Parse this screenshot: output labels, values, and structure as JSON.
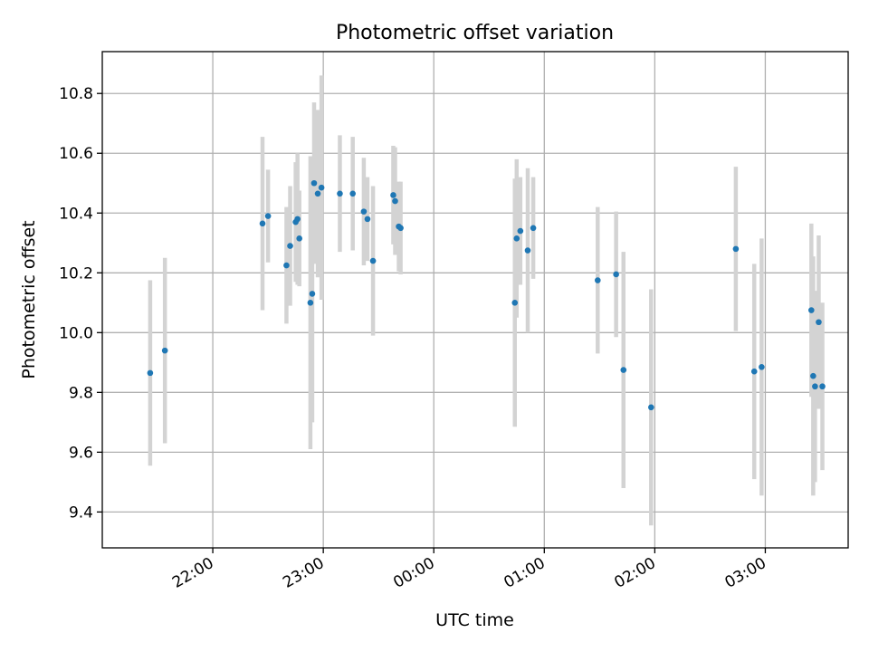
{
  "chart_data": {
    "type": "scatter",
    "title": "Photometric offset variation",
    "xlabel": "UTC time",
    "ylabel": "Photometric offset",
    "x_axis": {
      "kind": "time",
      "start": "21:00",
      "end": "03:45",
      "ticks": [
        "22:00",
        "23:00",
        "00:00",
        "01:00",
        "02:00",
        "03:00"
      ]
    },
    "y_axis": {
      "ylim": [
        9.28,
        10.94
      ],
      "ticks": [
        "9.4",
        "9.6",
        "9.8",
        "10.0",
        "10.2",
        "10.4",
        "10.6",
        "10.8"
      ]
    },
    "grid": true,
    "legend": "none",
    "colors": {
      "marker": "#1f77b4",
      "errorbar": "#d3d3d3",
      "grid": "#b0b0b0"
    },
    "points": [
      {
        "t": "21:26",
        "y": 9.865,
        "err": 0.31
      },
      {
        "t": "21:34",
        "y": 9.94,
        "err": 0.31
      },
      {
        "t": "22:27",
        "y": 10.365,
        "err": 0.29
      },
      {
        "t": "22:30",
        "y": 10.39,
        "err": 0.155
      },
      {
        "t": "22:40",
        "y": 10.225,
        "err": 0.195
      },
      {
        "t": "22:42",
        "y": 10.29,
        "err": 0.2
      },
      {
        "t": "22:45",
        "y": 10.37,
        "err": 0.2
      },
      {
        "t": "22:46",
        "y": 10.38,
        "err": 0.22
      },
      {
        "t": "22:47",
        "y": 10.315,
        "err": 0.16
      },
      {
        "t": "22:53",
        "y": 10.1,
        "err": 0.49
      },
      {
        "t": "22:54",
        "y": 10.13,
        "err": 0.43
      },
      {
        "t": "22:55",
        "y": 10.5,
        "err": 0.27
      },
      {
        "t": "22:57",
        "y": 10.465,
        "err": 0.28
      },
      {
        "t": "22:59",
        "y": 10.485,
        "err": 0.375
      },
      {
        "t": "23:09",
        "y": 10.465,
        "err": 0.195
      },
      {
        "t": "23:16",
        "y": 10.465,
        "err": 0.19
      },
      {
        "t": "23:22",
        "y": 10.405,
        "err": 0.18
      },
      {
        "t": "23:24",
        "y": 10.38,
        "err": 0.14
      },
      {
        "t": "23:27",
        "y": 10.24,
        "err": 0.25
      },
      {
        "t": "23:38",
        "y": 10.46,
        "err": 0.165
      },
      {
        "t": "23:39",
        "y": 10.44,
        "err": 0.18
      },
      {
        "t": "23:41",
        "y": 10.355,
        "err": 0.15
      },
      {
        "t": "23:42",
        "y": 10.35,
        "err": 0.155
      },
      {
        "t": "00:44",
        "y": 10.1,
        "err": 0.415
      },
      {
        "t": "00:45",
        "y": 10.315,
        "err": 0.265
      },
      {
        "t": "00:47",
        "y": 10.34,
        "err": 0.18
      },
      {
        "t": "00:51",
        "y": 10.275,
        "err": 0.275
      },
      {
        "t": "00:54",
        "y": 10.35,
        "err": 0.17
      },
      {
        "t": "01:29",
        "y": 10.175,
        "err": 0.245
      },
      {
        "t": "01:39",
        "y": 10.195,
        "err": 0.21
      },
      {
        "t": "01:43",
        "y": 9.875,
        "err": 0.395
      },
      {
        "t": "01:58",
        "y": 9.75,
        "err": 0.395
      },
      {
        "t": "02:44",
        "y": 10.28,
        "err": 0.275
      },
      {
        "t": "02:54",
        "y": 9.87,
        "err": 0.36
      },
      {
        "t": "02:58",
        "y": 9.885,
        "err": 0.43
      },
      {
        "t": "03:25",
        "y": 10.075,
        "err": 0.29
      },
      {
        "t": "03:26",
        "y": 9.855,
        "err": 0.4
      },
      {
        "t": "03:27",
        "y": 9.82,
        "err": 0.32
      },
      {
        "t": "03:29",
        "y": 10.035,
        "err": 0.29
      },
      {
        "t": "03:31",
        "y": 9.82,
        "err": 0.28
      }
    ]
  }
}
